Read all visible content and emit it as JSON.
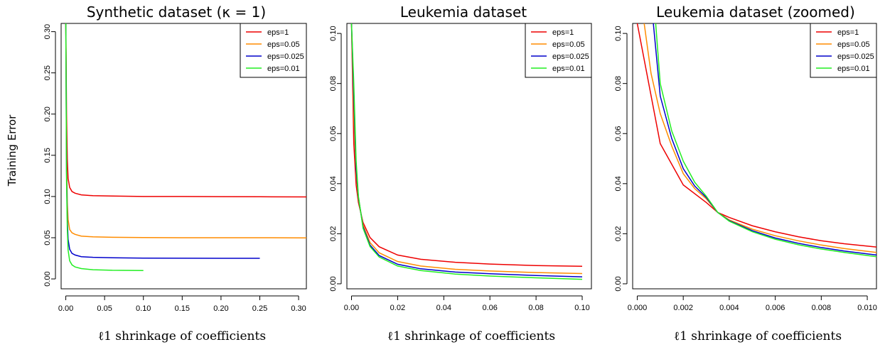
{
  "figure": {
    "ylabel": "Training Error"
  },
  "chart_data": [
    {
      "type": "line",
      "title": "Synthetic dataset (κ = 1)",
      "xlabel": "ℓ1 shrinkage of coefficients",
      "ylabel": "Training Error",
      "xlim": [
        -0.006,
        0.31
      ],
      "ylim": [
        -0.012,
        0.31
      ],
      "xticks": [
        0.0,
        0.05,
        0.1,
        0.15,
        0.2,
        0.25,
        0.3
      ],
      "xtick_labels": [
        "0.00",
        "0.05",
        "0.10",
        "0.15",
        "0.20",
        "0.25",
        "0.30"
      ],
      "yticks": [
        0.0,
        0.05,
        0.1,
        0.15,
        0.2,
        0.25,
        0.3
      ],
      "ytick_labels": [
        "0.00",
        "0.05",
        "0.10",
        "0.15",
        "0.20",
        "0.25",
        "0.30"
      ],
      "grid": false,
      "legend_position": "top-right",
      "series": [
        {
          "name": "eps=1",
          "color": "#ee0000",
          "x": [
            0.0,
            0.001,
            0.002,
            0.003,
            0.005,
            0.008,
            0.012,
            0.02,
            0.035,
            0.06,
            0.1,
            0.15,
            0.2,
            0.25,
            0.31
          ],
          "y": [
            0.31,
            0.2,
            0.145,
            0.122,
            0.111,
            0.106,
            0.104,
            0.102,
            0.101,
            0.1005,
            0.1,
            0.1,
            0.0998,
            0.0997,
            0.0995
          ]
        },
        {
          "name": "eps=0.05",
          "color": "#ff8c00",
          "x": [
            0.0,
            0.001,
            0.002,
            0.003,
            0.005,
            0.008,
            0.012,
            0.02,
            0.035,
            0.06,
            0.1,
            0.15,
            0.2,
            0.25,
            0.31
          ],
          "y": [
            0.31,
            0.15,
            0.092,
            0.072,
            0.06,
            0.056,
            0.054,
            0.052,
            0.051,
            0.0505,
            0.0502,
            0.05,
            0.05,
            0.05,
            0.0498
          ]
        },
        {
          "name": "eps=0.025",
          "color": "#0000cc",
          "x": [
            0.0,
            0.001,
            0.002,
            0.003,
            0.005,
            0.008,
            0.012,
            0.02,
            0.035,
            0.06,
            0.1,
            0.15,
            0.2,
            0.25
          ],
          "y": [
            0.31,
            0.13,
            0.072,
            0.048,
            0.036,
            0.031,
            0.029,
            0.027,
            0.0262,
            0.0256,
            0.0253,
            0.0251,
            0.025,
            0.025
          ]
        },
        {
          "name": "eps=0.01",
          "color": "#22ee22",
          "x": [
            0.0,
            0.001,
            0.002,
            0.003,
            0.005,
            0.008,
            0.012,
            0.02,
            0.035,
            0.06,
            0.1
          ],
          "y": [
            0.31,
            0.12,
            0.06,
            0.035,
            0.022,
            0.017,
            0.0145,
            0.0125,
            0.0112,
            0.0105,
            0.0102
          ]
        }
      ]
    },
    {
      "type": "line",
      "title": "Leukemia dataset",
      "xlabel": "ℓ1 shrinkage of coefficients",
      "ylabel": "",
      "xlim": [
        -0.002,
        0.104
      ],
      "ylim": [
        -0.002,
        0.104
      ],
      "xticks": [
        0.0,
        0.02,
        0.04,
        0.06,
        0.08,
        0.1
      ],
      "xtick_labels": [
        "0.00",
        "0.02",
        "0.04",
        "0.06",
        "0.08",
        "0.10"
      ],
      "yticks": [
        0.0,
        0.02,
        0.04,
        0.06,
        0.08,
        0.1
      ],
      "ytick_labels": [
        "0.00",
        "0.02",
        "0.04",
        "0.06",
        "0.08",
        "0.10"
      ],
      "grid": false,
      "legend_position": "top-right",
      "series": [
        {
          "name": "eps=1",
          "color": "#ee0000",
          "x": [
            0.0,
            0.001,
            0.002,
            0.003,
            0.005,
            0.008,
            0.012,
            0.02,
            0.03,
            0.045,
            0.06,
            0.08,
            0.1
          ],
          "y": [
            0.104,
            0.056,
            0.0395,
            0.0325,
            0.0245,
            0.0185,
            0.0148,
            0.0115,
            0.0098,
            0.0086,
            0.0079,
            0.0073,
            0.007
          ]
        },
        {
          "name": "eps=0.05",
          "color": "#ff8c00",
          "x": [
            0.0,
            0.001,
            0.002,
            0.003,
            0.005,
            0.008,
            0.012,
            0.02,
            0.03,
            0.045,
            0.06,
            0.08,
            0.1
          ],
          "y": [
            0.104,
            0.068,
            0.044,
            0.034,
            0.0235,
            0.0165,
            0.0124,
            0.0089,
            0.0071,
            0.0058,
            0.0051,
            0.0045,
            0.0041
          ]
        },
        {
          "name": "eps=0.025",
          "color": "#0000cc",
          "x": [
            0.0,
            0.001,
            0.002,
            0.003,
            0.005,
            0.008,
            0.012,
            0.02,
            0.03,
            0.045,
            0.06,
            0.08,
            0.1
          ],
          "y": [
            0.104,
            0.075,
            0.046,
            0.0345,
            0.0228,
            0.0155,
            0.0113,
            0.0078,
            0.006,
            0.0047,
            0.004,
            0.0033,
            0.0028
          ]
        },
        {
          "name": "eps=0.01",
          "color": "#22ee22",
          "x": [
            0.0,
            0.001,
            0.002,
            0.003,
            0.005,
            0.008,
            0.012,
            0.02,
            0.03,
            0.045,
            0.06,
            0.08,
            0.1
          ],
          "y": [
            0.104,
            0.08,
            0.049,
            0.035,
            0.0222,
            0.0149,
            0.0107,
            0.0071,
            0.0053,
            0.0039,
            0.0031,
            0.0024,
            0.0018
          ]
        }
      ]
    },
    {
      "type": "line",
      "title": "Leukemia dataset (zoomed)",
      "xlabel": "ℓ1 shrinkage of coefficients",
      "ylabel": "",
      "xlim": [
        -0.0002,
        0.0104
      ],
      "ylim": [
        -0.002,
        0.104
      ],
      "xticks": [
        0.0,
        0.002,
        0.004,
        0.006,
        0.008,
        0.01
      ],
      "xtick_labels": [
        "0.000",
        "0.002",
        "0.004",
        "0.006",
        "0.008",
        "0.010"
      ],
      "yticks": [
        0.0,
        0.02,
        0.04,
        0.06,
        0.08,
        0.1
      ],
      "ytick_labels": [
        "0.00",
        "0.02",
        "0.04",
        "0.06",
        "0.08",
        "0.10"
      ],
      "grid": false,
      "legend_position": "top-right",
      "series": [
        {
          "name": "eps=1",
          "color": "#ee0000",
          "x": [
            0.0,
            0.001,
            0.002,
            0.003,
            0.0035,
            0.004,
            0.005,
            0.006,
            0.007,
            0.008,
            0.009,
            0.0104
          ],
          "y": [
            0.104,
            0.056,
            0.0395,
            0.0325,
            0.0285,
            0.0265,
            0.0232,
            0.0208,
            0.0188,
            0.0172,
            0.016,
            0.0147
          ]
        },
        {
          "name": "eps=0.05",
          "color": "#ff8c00",
          "x": [
            0.0003,
            0.0006,
            0.001,
            0.0015,
            0.002,
            0.0025,
            0.003,
            0.0035,
            0.004,
            0.005,
            0.006,
            0.007,
            0.008,
            0.009,
            0.0104
          ],
          "y": [
            0.104,
            0.084,
            0.068,
            0.055,
            0.044,
            0.038,
            0.034,
            0.0285,
            0.0255,
            0.0218,
            0.0192,
            0.0172,
            0.0155,
            0.0141,
            0.0125
          ]
        },
        {
          "name": "eps=0.025",
          "color": "#0000cc",
          "x": [
            0.0007,
            0.001,
            0.0015,
            0.002,
            0.0025,
            0.003,
            0.0035,
            0.004,
            0.005,
            0.006,
            0.007,
            0.008,
            0.009,
            0.0104
          ],
          "y": [
            0.104,
            0.075,
            0.058,
            0.046,
            0.039,
            0.0345,
            0.0285,
            0.0252,
            0.0212,
            0.0183,
            0.0162,
            0.0145,
            0.0131,
            0.0115
          ]
        },
        {
          "name": "eps=0.01",
          "color": "#22ee22",
          "x": [
            0.0008,
            0.001,
            0.0015,
            0.002,
            0.0025,
            0.003,
            0.0035,
            0.004,
            0.005,
            0.006,
            0.007,
            0.008,
            0.009,
            0.0104
          ],
          "y": [
            0.104,
            0.08,
            0.061,
            0.049,
            0.0405,
            0.035,
            0.0285,
            0.025,
            0.0208,
            0.0178,
            0.0156,
            0.0139,
            0.0125,
            0.0108
          ]
        }
      ]
    }
  ]
}
